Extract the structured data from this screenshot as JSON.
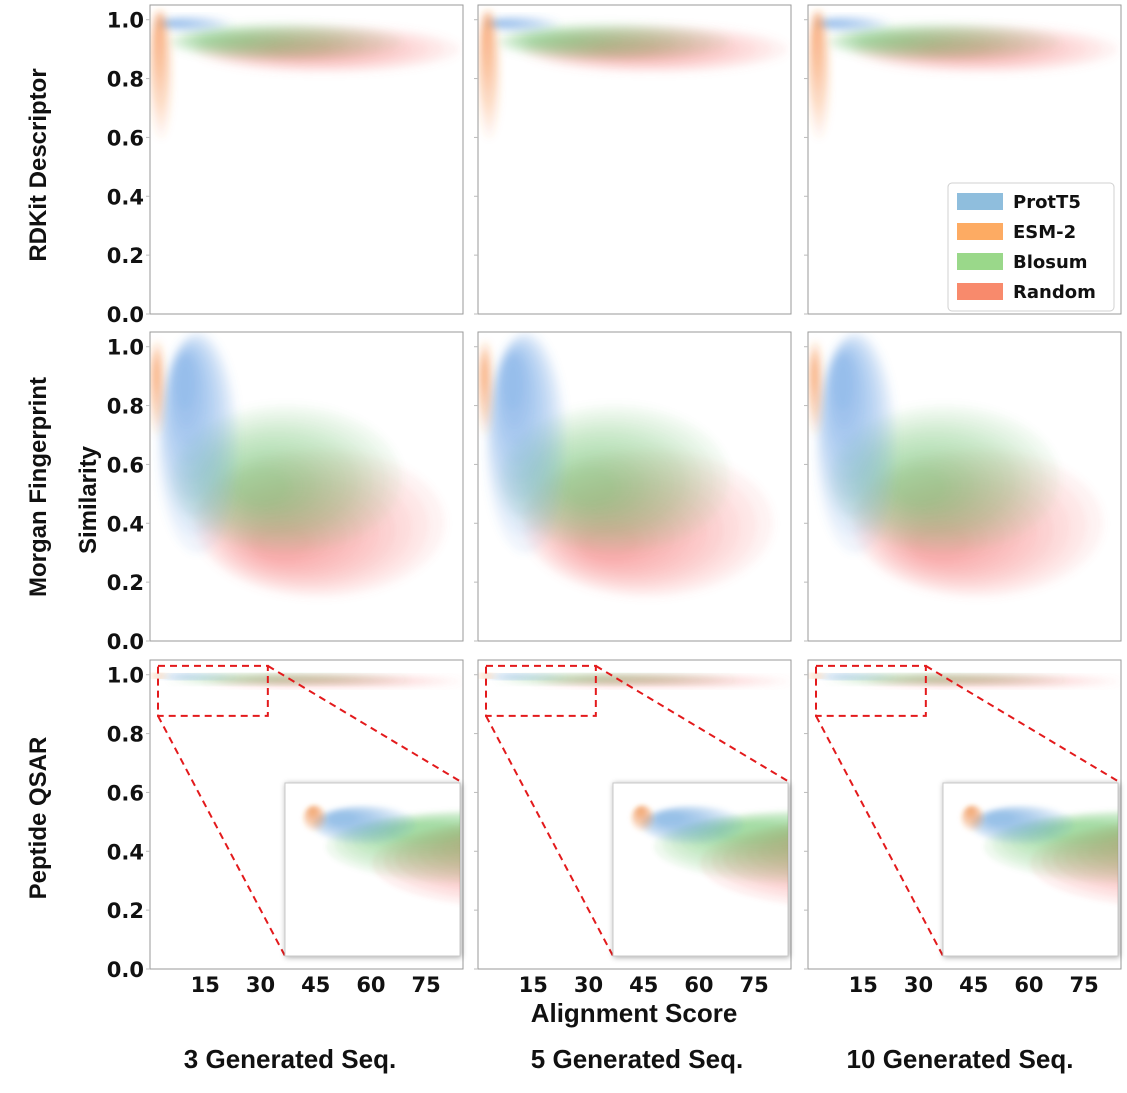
{
  "figure": {
    "ylabel": "Similarity",
    "xlabel": "Alignment Score",
    "column_titles": [
      "3 Generated Seq.",
      "5 Generated Seq.",
      "10 Generated Seq."
    ],
    "row_labels": [
      "RDKit Descriptor",
      "Morgan Fingerprint",
      "Peptide QSAR"
    ]
  },
  "legend": {
    "position": "lower-right of top-right panel",
    "entries": [
      {
        "name": "ProtT5",
        "color": "#8fbedd"
      },
      {
        "name": "ESM-2",
        "color": "#fdab63"
      },
      {
        "name": "Blosum",
        "color": "#9ad88a"
      },
      {
        "name": "Random",
        "color": "#f88a6c"
      }
    ]
  },
  "chart_data": {
    "type": "kde-contour-grid",
    "xlim": [
      0,
      85
    ],
    "ylim": [
      0,
      1.05
    ],
    "xticks": [
      15,
      30,
      45,
      60,
      75
    ],
    "xtick_labels": [
      "15",
      "30",
      "45",
      "60",
      "75"
    ],
    "yticks": [
      0.0,
      0.2,
      0.4,
      0.6,
      0.8,
      1.0
    ],
    "ytick_labels": [
      "0.0",
      "0.2",
      "0.4",
      "0.6",
      "0.8",
      "1.0"
    ],
    "series_colors": {
      "ProtT5": "#4a90d9",
      "ESM-2": "#f07a2c",
      "Blosum": "#66c066",
      "Random": "#f26b6b"
    },
    "rows": [
      {
        "name": "RDKit Descriptor",
        "series": [
          {
            "name": "Random",
            "x_range": [
              12,
              84
            ],
            "y_range": [
              0.82,
              0.98
            ],
            "peak": [
              40,
              0.9
            ]
          },
          {
            "name": "Blosum",
            "x_range": [
              5,
              68
            ],
            "y_range": [
              0.86,
              0.99
            ],
            "peak": [
              20,
              0.93
            ]
          },
          {
            "name": "ProtT5",
            "x_range": [
              2,
              22
            ],
            "y_range": [
              0.96,
              1.01
            ],
            "peak": [
              5,
              0.99
            ]
          },
          {
            "name": "ESM-2",
            "x_range": [
              0,
              6
            ],
            "y_range": [
              0.6,
              1.03
            ],
            "peak": [
              2,
              0.99
            ]
          }
        ]
      },
      {
        "name": "Morgan Fingerprint",
        "series": [
          {
            "name": "Random",
            "x_range": [
              12,
              80
            ],
            "y_range": [
              0.15,
              0.65
            ],
            "peak": [
              35,
              0.33
            ]
          },
          {
            "name": "Blosum",
            "x_range": [
              6,
              68
            ],
            "y_range": [
              0.3,
              0.8
            ],
            "peak": [
              30,
              0.52
            ]
          },
          {
            "name": "ProtT5",
            "x_range": [
              2,
              24
            ],
            "y_range": [
              0.3,
              1.05
            ],
            "peak": [
              9,
              0.9
            ]
          },
          {
            "name": "ESM-2",
            "x_range": [
              0,
              4
            ],
            "y_range": [
              0.7,
              1.02
            ],
            "peak": [
              1.5,
              0.92
            ]
          }
        ]
      },
      {
        "name": "Peptide QSAR",
        "series": [
          {
            "name": "Random",
            "x_range": [
              15,
              85
            ],
            "y_range": [
              0.96,
              0.995
            ],
            "peak": [
              40,
              0.985
            ]
          },
          {
            "name": "Blosum",
            "x_range": [
              5,
              70
            ],
            "y_range": [
              0.97,
              0.998
            ],
            "peak": [
              25,
              0.99
            ]
          },
          {
            "name": "ProtT5",
            "x_range": [
              2,
              24
            ],
            "y_range": [
              0.985,
              1.0
            ],
            "peak": [
              8,
              0.995
            ]
          },
          {
            "name": "ESM-2",
            "x_range": [
              0,
              5
            ],
            "y_range": [
              0.99,
              1.0
            ],
            "peak": [
              2,
              0.998
            ]
          }
        ],
        "inset": {
          "zoom_x_range": [
            0,
            32
          ],
          "zoom_y_range": [
            0.86,
            1.03
          ],
          "style": "red-dashed-box"
        }
      }
    ]
  }
}
